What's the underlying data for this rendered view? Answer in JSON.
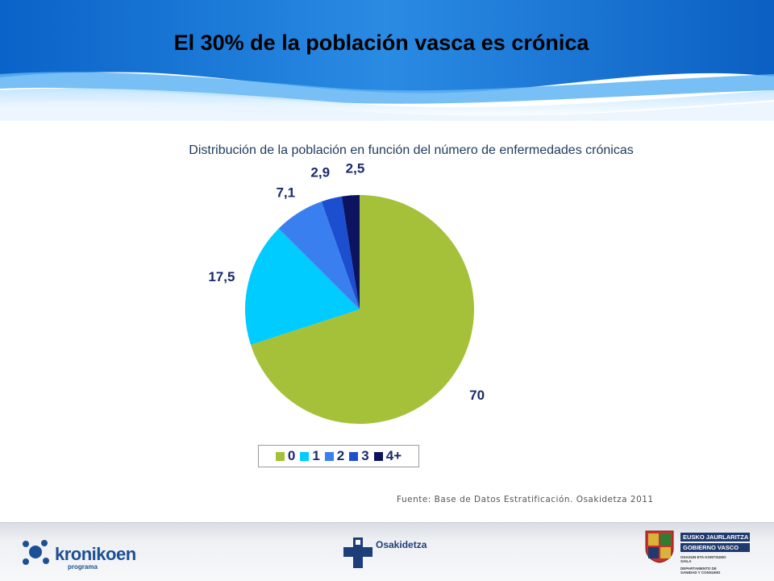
{
  "slide": {
    "title": "El 30% de la población vasca es crónica",
    "source_note": "Fuente: Base de Datos Estratificación. Osakidetza 2011"
  },
  "chart_data": {
    "type": "pie",
    "title": "Distribución de la población en función del número de enfermedades crónicas",
    "categories": [
      "0",
      "1",
      "2",
      "3",
      "4+"
    ],
    "values": [
      70,
      17.5,
      7.1,
      2.9,
      2.5
    ],
    "value_labels": [
      "70",
      "17,5",
      "7,1",
      "2,9",
      "2,5"
    ],
    "colors": [
      "#a5c13a",
      "#00ccff",
      "#3a7ff0",
      "#1c4fd0",
      "#0c1460"
    ],
    "start": "12 o'clock",
    "direction": "clockwise",
    "legend_position": "bottom"
  },
  "footer": {
    "kronikoen": {
      "name": "kronikoen",
      "sub": "programa",
      "icon": "kronikoen-logo-icon"
    },
    "osakidetza": {
      "name": "Osakidetza",
      "icon": "osakidetza-cross-icon"
    },
    "gobierno": {
      "line1": "EUSKO JAURLARITZA",
      "line2": "GOBIERNO VASCO",
      "dept1": "OSASUN ETA KONTSUMO SAILA",
      "dept2": "DEPARTAMENTO DE SANIDAD Y CONSUMO",
      "icon": "basque-coat-of-arms-icon"
    }
  }
}
